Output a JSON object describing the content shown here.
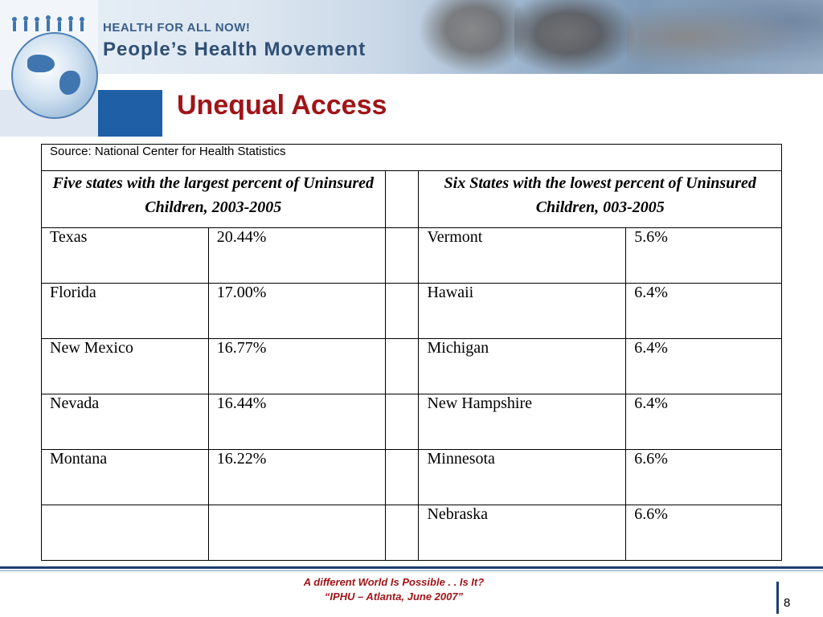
{
  "header": {
    "tagline": "HEALTH FOR ALL NOW!",
    "organization": "People’s Health Movement"
  },
  "slide": {
    "title": "Unequal Access"
  },
  "table": {
    "source": "Source: National Center for Health Statistics",
    "left_header": "Five states with the largest percent of Uninsured Children, 2003-2005",
    "right_header": "Six States with the lowest percent of Uninsured Children, 003-2005",
    "rows": [
      {
        "left_state": "Texas",
        "left_value": "20.44%",
        "right_state": "Vermont",
        "right_value": "5.6%"
      },
      {
        "left_state": "Florida",
        "left_value": "17.00%",
        "right_state": "Hawaii",
        "right_value": "6.4%"
      },
      {
        "left_state": "New Mexico",
        "left_value": "16.77%",
        "right_state": "Michigan",
        "right_value": "6.4%"
      },
      {
        "left_state": "Nevada",
        "left_value": "16.44%",
        "right_state": "New Hampshire",
        "right_value": "6.4%"
      },
      {
        "left_state": "Montana",
        "left_value": "16.22%",
        "right_state": "Minnesota",
        "right_value": "6.6%"
      },
      {
        "left_state": "",
        "left_value": "",
        "right_state": "Nebraska",
        "right_value": "6.6%"
      }
    ]
  },
  "footer": {
    "line1": "A different World Is Possible . . Is It?",
    "line2": "“IPHU – Atlanta, June 2007”",
    "page_number": "8"
  },
  "colors": {
    "title": "#a01418",
    "footer_rule": "#1f3d6e",
    "banner_text": "#2f4f74"
  }
}
